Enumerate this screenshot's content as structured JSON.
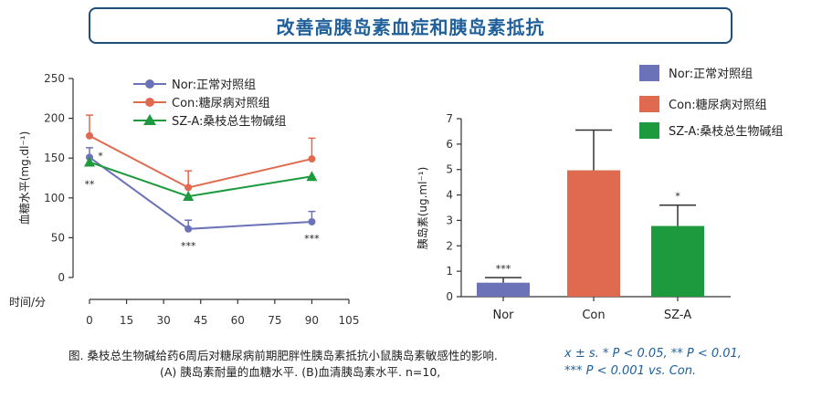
{
  "title": "改善高胰岛素血症和胰岛素抵抗",
  "caption": {
    "line1": "图. 桑枝总生物碱给药6周后对糖尿病前期肥胖性胰岛素抵抗小鼠胰岛素敏感性的影响.",
    "line2": "(A) 胰岛素耐量的血糖水平. (B)血清胰岛素水平. n=10,"
  },
  "stats_note": {
    "line1": "x ± s.  * P < 0.05, ** P < 0.01,",
    "line2": "*** P < 0.001 vs. Con."
  },
  "colors": {
    "nor": "#6b72b8",
    "con": "#e06a50",
    "sza": "#1e9a3e",
    "title": "#1f5f9a"
  },
  "chart_data": [
    {
      "type": "line",
      "xlabel": "时间/分",
      "ylabel": "血糖水平(mg.dl⁻¹)",
      "xlim": [
        0,
        105
      ],
      "ylim": [
        0,
        250
      ],
      "xticks": [
        0,
        15,
        30,
        45,
        60,
        75,
        90,
        105
      ],
      "yticks": [
        0,
        50,
        100,
        150,
        200,
        250
      ],
      "legend_position": "top",
      "x": [
        0,
        40,
        90
      ],
      "series": [
        {
          "name": "Nor:正常对照组",
          "marker": "circle",
          "color": "#6b72b8",
          "values": [
            151,
            61,
            70
          ],
          "errors": [
            12,
            11,
            13
          ],
          "annotations": [
            "",
            "***",
            "***"
          ]
        },
        {
          "name": "Con:糖尿病对照组",
          "marker": "circle",
          "color": "#e06a50",
          "values": [
            178,
            113,
            149
          ],
          "errors": [
            26,
            21,
            26
          ],
          "annotations": [
            "",
            "",
            ""
          ]
        },
        {
          "name": "SZ-A:桑枝总生物碱组",
          "marker": "triangle",
          "color": "#1e9a3e",
          "values": [
            145,
            102,
            127
          ],
          "errors": [
            0,
            0,
            0
          ],
          "annotations": [
            "*",
            "",
            ""
          ]
        }
      ],
      "extra_annotations": [
        {
          "text": "**",
          "x": 0,
          "below": true
        }
      ]
    },
    {
      "type": "bar",
      "ylabel": "胰岛素(ug.ml⁻¹)",
      "ylim": [
        0,
        7
      ],
      "yticks": [
        0,
        1,
        2,
        3,
        4,
        5,
        6,
        7
      ],
      "categories": [
        "Nor",
        "Con",
        "SZ-A"
      ],
      "values": [
        0.55,
        4.97,
        2.78
      ],
      "errors": [
        0.2,
        1.58,
        0.82
      ],
      "annotations": [
        "***",
        "",
        "*"
      ],
      "colors": [
        "#6b72b8",
        "#e06a50",
        "#1e9a3e"
      ],
      "legend_position": "top-right",
      "legend": [
        "Nor:正常对照组",
        "Con:糖尿病对照组",
        "SZ-A:桑枝总生物碱组"
      ]
    }
  ]
}
